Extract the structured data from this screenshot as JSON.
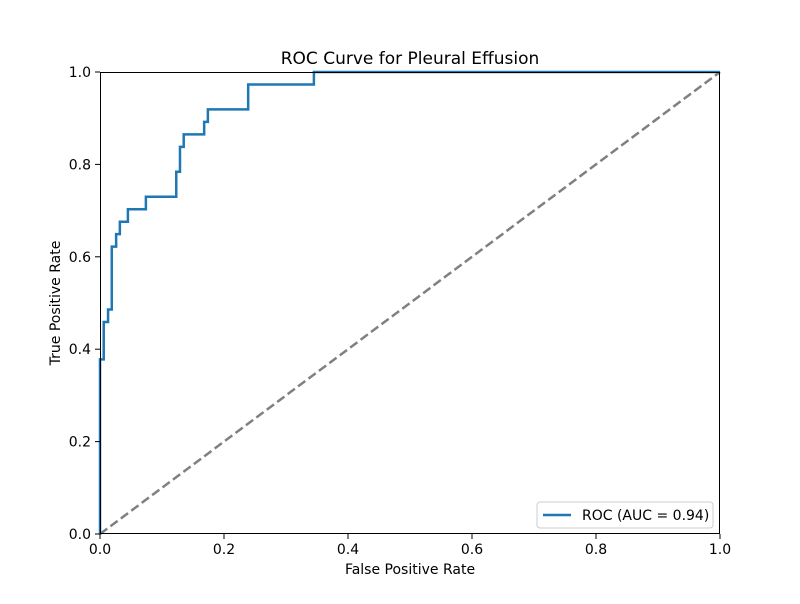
{
  "chart_data": {
    "type": "line",
    "title": "ROC Curve for Pleural Effusion",
    "xlabel": "False Positive Rate",
    "ylabel": "True Positive Rate",
    "xlim": [
      0.0,
      1.0
    ],
    "ylim": [
      0.0,
      1.0
    ],
    "xticks": [
      "0.0",
      "0.2",
      "0.4",
      "0.6",
      "0.8",
      "1.0"
    ],
    "yticks": [
      "0.0",
      "0.2",
      "0.4",
      "0.6",
      "0.8",
      "1.0"
    ],
    "grid": false,
    "legend_position": "lower-right",
    "series": [
      {
        "name": "ROC (AUC = 0.94)",
        "color": "#1f77b4",
        "style": "solid",
        "x": [
          0.0,
          0.0,
          0.0,
          0.006,
          0.006,
          0.013,
          0.013,
          0.019,
          0.019,
          0.026,
          0.026,
          0.032,
          0.032,
          0.045,
          0.045,
          0.074,
          0.074,
          0.123,
          0.123,
          0.129,
          0.129,
          0.135,
          0.135,
          0.168,
          0.168,
          0.174,
          0.174,
          0.239,
          0.239,
          0.345,
          0.345,
          1.0
        ],
        "y": [
          0.0,
          0.378,
          0.378,
          0.378,
          0.459,
          0.459,
          0.486,
          0.486,
          0.622,
          0.622,
          0.649,
          0.649,
          0.676,
          0.676,
          0.703,
          0.703,
          0.73,
          0.73,
          0.784,
          0.784,
          0.838,
          0.838,
          0.865,
          0.865,
          0.892,
          0.892,
          0.919,
          0.919,
          0.973,
          0.973,
          1.0,
          1.0
        ]
      },
      {
        "name": "",
        "color": "#808080",
        "style": "dashed",
        "x": [
          0.0,
          1.0
        ],
        "y": [
          0.0,
          1.0
        ]
      }
    ]
  }
}
